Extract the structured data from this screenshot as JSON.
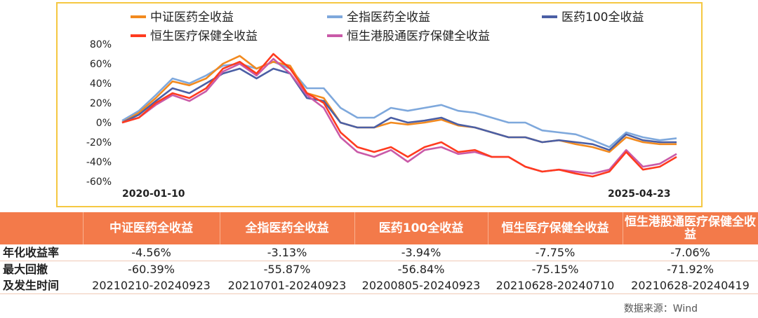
{
  "chart_data": {
    "type": "line",
    "x_start_label": "2020-01-10",
    "x_end_label": "2025-04-23",
    "yticks": [
      "80%",
      "60%",
      "40%",
      "20%",
      "0%",
      "-20%",
      "-40%",
      "-60%"
    ],
    "ylim": [
      -60,
      80
    ],
    "grid": false,
    "legend_position": "top",
    "x": [
      "2020-01",
      "2020-03",
      "2020-05",
      "2020-07",
      "2020-09",
      "2020-11",
      "2021-01",
      "2021-02",
      "2021-04",
      "2021-06",
      "2021-07",
      "2021-09",
      "2021-11",
      "2022-01",
      "2022-03",
      "2022-05",
      "2022-07",
      "2022-09",
      "2022-11",
      "2023-01",
      "2023-03",
      "2023-05",
      "2023-07",
      "2023-09",
      "2023-11",
      "2024-01",
      "2024-03",
      "2024-05",
      "2024-07",
      "2024-09",
      "2024-10",
      "2024-12",
      "2025-02",
      "2025-04"
    ],
    "series": [
      {
        "name": "中证医药全收益",
        "color": "#f28a1f",
        "values": [
          0,
          10,
          25,
          42,
          38,
          45,
          60,
          68,
          55,
          62,
          58,
          30,
          25,
          0,
          -5,
          -5,
          0,
          -2,
          0,
          3,
          -3,
          -5,
          -10,
          -15,
          -15,
          -20,
          -18,
          -22,
          -25,
          -30,
          -15,
          -20,
          -22,
          -22
        ]
      },
      {
        "name": "全指医药全收益",
        "color": "#7ea8dc",
        "values": [
          2,
          12,
          28,
          45,
          40,
          48,
          58,
          60,
          55,
          62,
          55,
          35,
          35,
          15,
          5,
          5,
          15,
          12,
          15,
          18,
          12,
          10,
          5,
          0,
          0,
          -8,
          -10,
          -12,
          -18,
          -25,
          -10,
          -15,
          -18,
          -16
        ]
      },
      {
        "name": "医药100全收益",
        "color": "#4b5fa5",
        "values": [
          0,
          8,
          22,
          35,
          30,
          40,
          50,
          55,
          45,
          55,
          50,
          25,
          22,
          0,
          -5,
          -5,
          5,
          0,
          2,
          5,
          -2,
          -5,
          -10,
          -15,
          -15,
          -20,
          -18,
          -20,
          -22,
          -28,
          -12,
          -18,
          -20,
          -20
        ]
      },
      {
        "name": "恒生医疗保健全收益",
        "color": "#ff3b1f",
        "values": [
          0,
          5,
          20,
          30,
          25,
          35,
          55,
          62,
          50,
          70,
          55,
          30,
          20,
          -10,
          -25,
          -30,
          -25,
          -35,
          -25,
          -20,
          -30,
          -28,
          -35,
          -35,
          -45,
          -50,
          -48,
          -52,
          -55,
          -50,
          -30,
          -48,
          -45,
          -35
        ]
      },
      {
        "name": "恒生港股通医疗保健全收益",
        "color": "#c95aa8",
        "values": [
          0,
          5,
          18,
          28,
          22,
          32,
          52,
          60,
          48,
          65,
          50,
          28,
          15,
          -15,
          -30,
          -35,
          -28,
          -40,
          -28,
          -25,
          -32,
          -30,
          -35,
          -35,
          -45,
          -50,
          -48,
          -50,
          -52,
          -48,
          -28,
          -45,
          -42,
          -32
        ]
      }
    ]
  },
  "table": {
    "headers": [
      "",
      "中证医药全收益",
      "全指医药全收益",
      "医药100全收益",
      "恒生医疗保健全收益",
      "恒生港股通医疗保健全收益"
    ],
    "annual_label": "年化收益率",
    "annual_values": [
      "-4.56%",
      "-3.13%",
      "-3.94%",
      "-7.75%",
      "-7.06%"
    ],
    "drawdown_label": "最大回撤",
    "drawdown_values": [
      "-60.39%",
      "-55.87%",
      "-56.84%",
      "-75.15%",
      "-71.92%"
    ],
    "period_label": "及发生时间",
    "period_values": [
      "20210210-20240923",
      "20210701-20240923",
      "20200805-20240923",
      "20210628-20240710",
      "20210628-20240419"
    ]
  },
  "source_note": "数据来源：Wind"
}
